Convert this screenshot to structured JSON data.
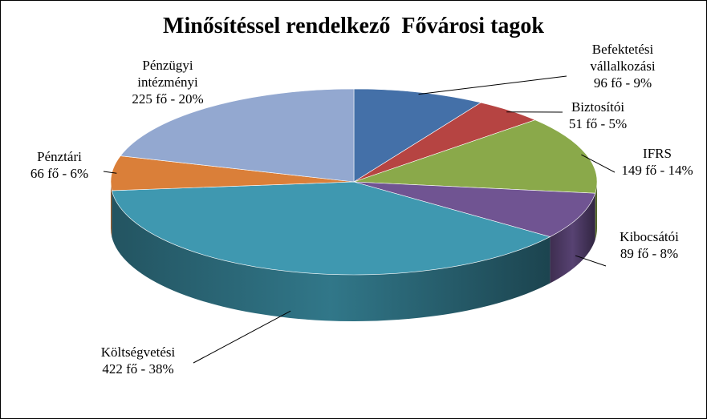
{
  "chart_data": {
    "type": "pie",
    "title": "Minősítéssel rendelkező  Fővárosi tagok",
    "three_d": true,
    "legend": "none",
    "slices": [
      {
        "lines": [
          "Befektetési",
          "vállalkozási",
          "96 fő - 9%"
        ],
        "value": 96,
        "percent": 9,
        "color": "#4470a8"
      },
      {
        "lines": [
          "Biztosítói",
          "51 fő - 5%"
        ],
        "value": 51,
        "percent": 5,
        "color": "#b64442"
      },
      {
        "lines": [
          "IFRS",
          "149 fő - 14%"
        ],
        "value": 149,
        "percent": 14,
        "color": "#8aa94a"
      },
      {
        "lines": [
          "Kibocsátói",
          "89 fő - 8%"
        ],
        "value": 89,
        "percent": 8,
        "color": "#705492"
      },
      {
        "lines": [
          "Költségvetési",
          "422 fő - 38%"
        ],
        "value": 422,
        "percent": 38,
        "color": "#3f98b0"
      },
      {
        "lines": [
          "Pénztári",
          "66 fő - 6%"
        ],
        "value": 66,
        "percent": 6,
        "color": "#da7f39"
      },
      {
        "lines": [
          "Pénzügyi",
          "intézményi",
          "225 fő - 20%"
        ],
        "value": 225,
        "percent": 20,
        "color": "#93a8d0"
      }
    ]
  }
}
